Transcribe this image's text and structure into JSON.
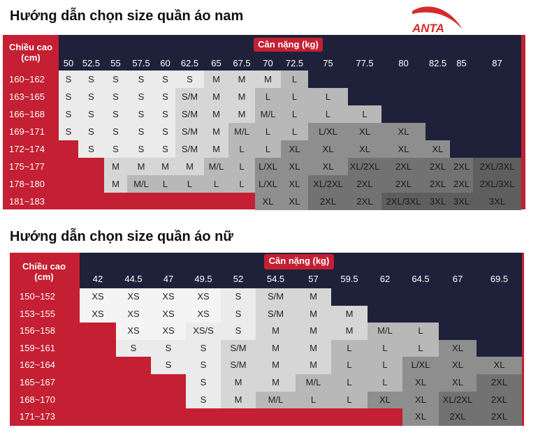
{
  "male": {
    "title": "Hướng dẫn chọn size quần áo nam",
    "height_label": "Chiều cao\n(cm)",
    "weight_label": "Cân nặng (kg)",
    "weights": [
      "50",
      "52.5",
      "55",
      "57.5",
      "60",
      "62.5",
      "65",
      "67.5",
      "70",
      "72.5",
      "75",
      "77.5",
      "80",
      "82.5",
      "85",
      "87"
    ],
    "heights": [
      "160~162",
      "163~165",
      "166~168",
      "169~171",
      "172~174",
      "175~177",
      "178~180",
      "181~183"
    ],
    "grid": [
      [
        "S",
        "S",
        "S",
        "S",
        "S",
        "S",
        "M",
        "M",
        "M",
        "L",
        "",
        "",
        "",
        "",
        "",
        ""
      ],
      [
        "S",
        "S",
        "S",
        "S",
        "S",
        "S/M",
        "M",
        "M",
        "L",
        "L",
        "L",
        "",
        "",
        "",
        "",
        ""
      ],
      [
        "S",
        "S",
        "S",
        "S",
        "S",
        "S/M",
        "M",
        "M",
        "M/L",
        "L",
        "L",
        "L",
        "",
        "",
        "",
        ""
      ],
      [
        "S",
        "S",
        "S",
        "S",
        "S",
        "S/M",
        "M",
        "M/L",
        "L",
        "L",
        "L/XL",
        "XL",
        "XL",
        "",
        "",
        ""
      ],
      [
        "",
        "S",
        "S",
        "S",
        "S",
        "S/M",
        "M",
        "L",
        "L",
        "XL",
        "XL",
        "XL",
        "XL",
        "XL",
        "",
        ""
      ],
      [
        "",
        "",
        "M",
        "M",
        "M",
        "M",
        "M/L",
        "L",
        "L/XL",
        "XL",
        "XL",
        "XL/2XL",
        "2XL",
        "2XL",
        "2XL",
        "2XL/3XL"
      ],
      [
        "",
        "",
        "M",
        "M/L",
        "L",
        "L",
        "L",
        "L",
        "L/XL",
        "XL",
        "XL/2XL",
        "2XL",
        "2XL",
        "2XL",
        "2XL",
        "2XL/3XL"
      ],
      [
        "",
        "",
        "",
        "",
        "",
        "",
        "",
        "",
        "XL",
        "XL",
        "2XL",
        "2XL",
        "2XL/3XL",
        "3XL",
        "3XL",
        "3XL"
      ]
    ]
  },
  "female": {
    "title": "Hướng dẫn chọn size quần áo nữ",
    "height_label": "Chiều cao\n(cm)",
    "weight_label": "Cân nặng (kg)",
    "weights": [
      "42",
      "44.5",
      "47",
      "49.5",
      "52",
      "54.5",
      "57",
      "59.5",
      "62",
      "64.5",
      "67",
      "69.5"
    ],
    "heights": [
      "150~152",
      "153~155",
      "156~158",
      "159~161",
      "162~164",
      "165~167",
      "168~170",
      "171~173"
    ],
    "grid": [
      [
        "XS",
        "XS",
        "XS",
        "XS",
        "S",
        "S/M",
        "M",
        "",
        "",
        "",
        "",
        ""
      ],
      [
        "XS",
        "XS",
        "XS",
        "XS",
        "S",
        "S/M",
        "M",
        "M",
        "",
        "",
        "",
        ""
      ],
      [
        "",
        "XS",
        "XS",
        "XS/S",
        "S",
        "M",
        "M",
        "M",
        "M/L",
        "L",
        "",
        ""
      ],
      [
        "",
        "S",
        "S",
        "S",
        "S/M",
        "M",
        "M",
        "L",
        "L",
        "L",
        "XL",
        ""
      ],
      [
        "",
        "",
        "S",
        "S",
        "S/M",
        "M",
        "M",
        "L",
        "L",
        "L/XL",
        "XL",
        "XL"
      ],
      [
        "",
        "",
        "",
        "S",
        "M",
        "M",
        "M/L",
        "L",
        "L",
        "XL",
        "XL",
        "2XL"
      ],
      [
        "",
        "",
        "",
        "S",
        "M",
        "M/L",
        "L",
        "L",
        "XL",
        "XL",
        "XL/2XL",
        "2XL"
      ],
      [
        "",
        "",
        "",
        "",
        "",
        "",
        "",
        "",
        "",
        "XL",
        "2XL",
        "2XL"
      ]
    ]
  },
  "logo": {
    "text": "ANTA",
    "color": "#d62b2b"
  },
  "colors": {
    "red": "#c41f32",
    "navy": "#1e2139",
    "XS": "#f4f4f4",
    "S": "#ebebeb",
    "M": "#d6d6d6",
    "L": "#b8b8b8",
    "XL": "#8e8e8e",
    "2XL": "#727272",
    "3XL": "#5e5e5e"
  }
}
